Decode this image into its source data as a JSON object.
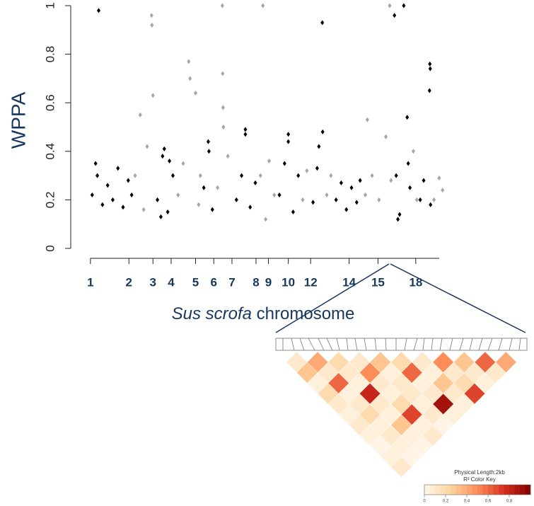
{
  "chart_data": [
    {
      "type": "scatter",
      "y_label": "WPPA",
      "x_label": [
        "Sus scrofa",
        "chromosome"
      ],
      "xlim": [
        -1,
        104
      ],
      "ylim": [
        0,
        1
      ],
      "yticks": [
        0,
        0.2,
        0.4,
        0.6,
        0.8,
        1
      ],
      "xticks": [
        {
          "value": 0,
          "label": "1"
        },
        {
          "value": 11.2,
          "label": "2"
        },
        {
          "value": 18.2,
          "label": "3"
        },
        {
          "value": 23.5,
          "label": "4"
        },
        {
          "value": 30.6,
          "label": "5"
        },
        {
          "value": 35.9,
          "label": "6"
        },
        {
          "value": 41.2,
          "label": "7"
        },
        {
          "value": 48.2,
          "label": "8"
        },
        {
          "value": 51.8,
          "label": "9"
        },
        {
          "value": 57.6,
          "label": "10"
        },
        {
          "value": 64.1,
          "label": "12"
        },
        {
          "value": 75.3,
          "label": "14"
        },
        {
          "value": 83.7,
          "label": "15"
        },
        {
          "value": 94.7,
          "label": "18"
        }
      ],
      "series": [
        {
          "color": "#000000",
          "x": [
            0.5,
            1.5,
            2,
            2.4,
            3.5,
            5,
            6.5,
            8,
            9.5,
            11,
            12,
            19.5,
            20.5,
            21,
            21.5,
            22.5,
            23,
            24,
            33,
            34.3,
            34.5,
            35.5,
            42.5,
            44,
            45.1,
            45.1,
            46.5,
            48,
            55,
            56.5,
            57.6,
            57.6,
            59,
            60.5,
            64.8,
            66,
            66.5,
            67.5,
            67.6,
            71.5,
            73,
            74.5,
            76,
            77.5,
            78.5,
            88.5,
            89,
            89.5,
            90,
            91.2,
            92.2,
            92.5,
            93,
            96,
            97,
            98.7,
            98.8,
            98.9,
            99
          ],
          "values": [
            0.22,
            0.35,
            0.3,
            0.98,
            0.18,
            0.26,
            0.2,
            0.33,
            0.17,
            0.28,
            0.22,
            0.2,
            0.13,
            0.38,
            0.41,
            0.15,
            0.36,
            0.3,
            0.25,
            0.44,
            0.4,
            0.16,
            0.2,
            0.3,
            0.49,
            0.47,
            0.17,
            0.27,
            0.22,
            0.35,
            0.47,
            0.44,
            0.15,
            0.3,
            0.19,
            0.33,
            0.42,
            0.93,
            0.48,
            0.2,
            0.27,
            0.16,
            0.25,
            0.19,
            0.28,
            0.96,
            0.3,
            0.12,
            0.14,
            1.0,
            0.54,
            0.35,
            0.25,
            0.2,
            0.28,
            0.65,
            0.76,
            0.74,
            0.18
          ]
        },
        {
          "color": "#a6a6a6",
          "x": [
            13,
            14.5,
            15.5,
            16.5,
            17.8,
            17.9,
            18.2,
            25.5,
            27,
            28.6,
            29,
            30.6,
            31.5,
            32,
            37,
            38.4,
            38.5,
            38.6,
            38.7,
            40,
            49.5,
            50.2,
            51,
            52,
            53.5,
            61.8,
            63,
            68.8,
            70,
            80,
            80.6,
            82,
            84,
            86,
            87.1,
            87.5,
            94,
            95,
            100,
            101.5,
            102.5
          ],
          "values": [
            0.3,
            0.55,
            0.16,
            0.42,
            0.96,
            0.92,
            0.63,
            0.22,
            0.35,
            0.77,
            0.7,
            0.64,
            0.18,
            0.3,
            0.25,
            1.0,
            0.72,
            0.58,
            0.5,
            0.38,
            0.3,
            1.0,
            0.12,
            0.36,
            0.22,
            0.2,
            0.32,
            0.22,
            0.3,
            0.22,
            0.53,
            0.3,
            0.2,
            0.46,
            1.0,
            0.28,
            0.4,
            0.2,
            0.2,
            0.29,
            0.24
          ]
        }
      ]
    },
    {
      "type": "heatmap",
      "subtitle": "Physical Length:2kb",
      "colorbar_title": "R² Color Key",
      "colors": [
        "#fff7ec",
        "#fdd49e",
        "#fc8d59",
        "#d7301f",
        "#7f0000"
      ],
      "colorbar_ticks": [
        0,
        0.2,
        0.4,
        0.6,
        0.8
      ],
      "values": [
        [
          0.1,
          0.3,
          0.05,
          0.2,
          0.1,
          0.05,
          0.1,
          0.05,
          0.02,
          0.05,
          0.1
        ],
        [
          0.4,
          0.1,
          0.6,
          0.05,
          0.1,
          0.2,
          0.05,
          0.1,
          0.05,
          0.02
        ],
        [
          0.2,
          0.1,
          0.05,
          0.8,
          0.1,
          0.05,
          0.3,
          0.05,
          0.02
        ],
        [
          0.1,
          0.5,
          0.1,
          0.05,
          0.2,
          0.7,
          0.05,
          0.1
        ],
        [
          0.3,
          0.05,
          0.1,
          0.1,
          0.05,
          0.1,
          0.02
        ],
        [
          0.2,
          0.6,
          0.05,
          0.1,
          0.9,
          0.05
        ],
        [
          0.1,
          0.05,
          0.3,
          0.1,
          0.05
        ],
        [
          0.5,
          0.1,
          0.2,
          0.7
        ],
        [
          0.3,
          0.1,
          0.05
        ],
        [
          0.6,
          0.1
        ],
        [
          0.4
        ]
      ]
    }
  ]
}
